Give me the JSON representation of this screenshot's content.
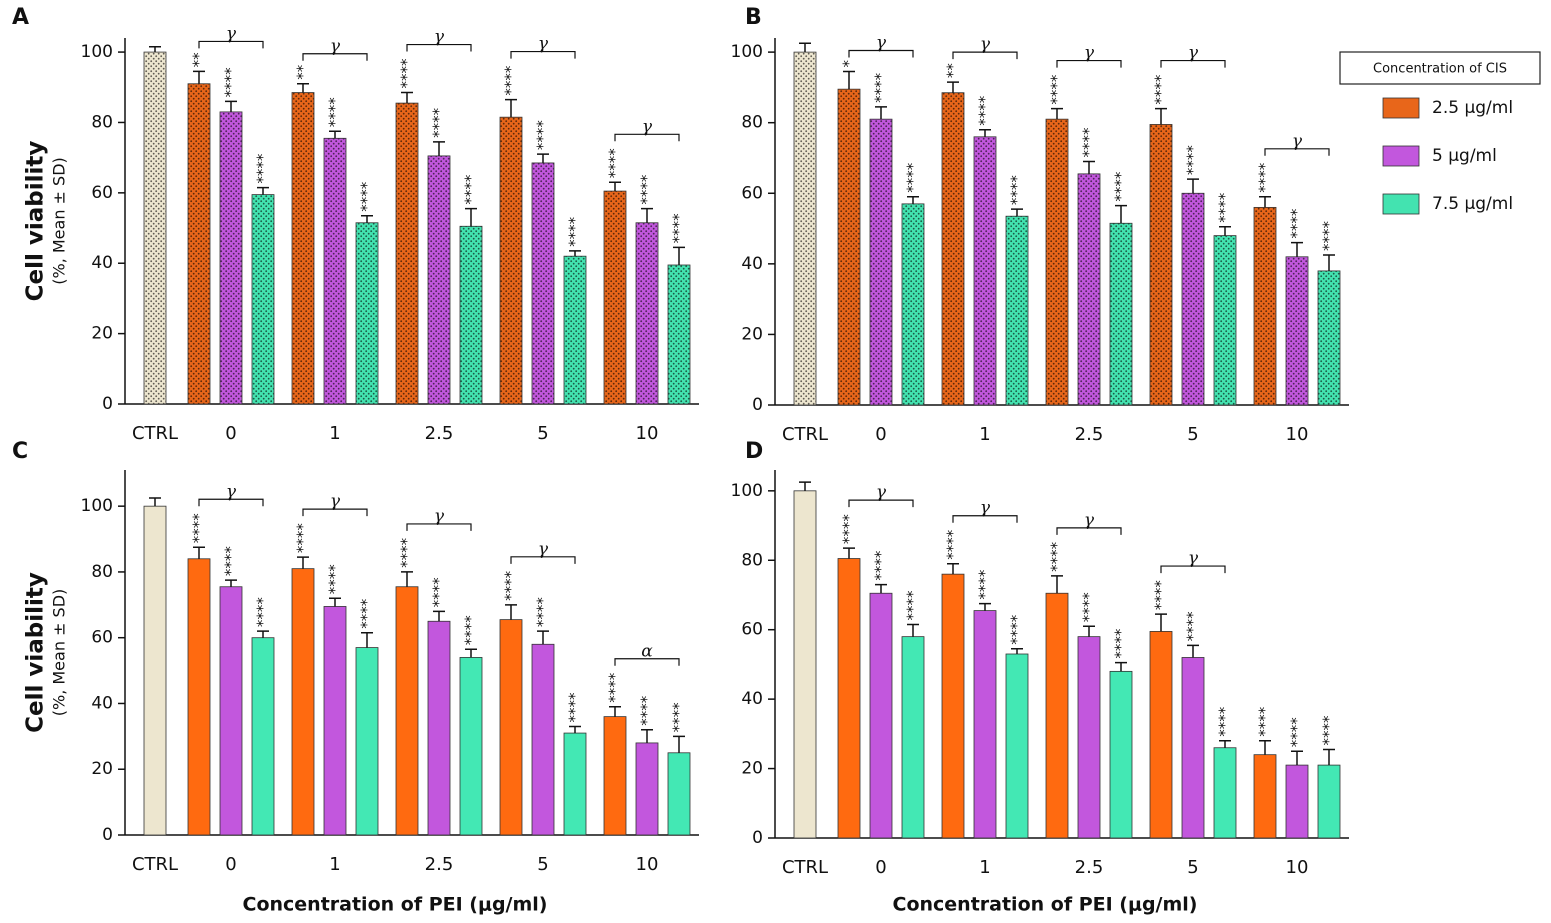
{
  "chart_data": [
    {
      "type": "bar",
      "panel": "A",
      "y_label": "Cell viability",
      "y_sublabel": "(%, Mean ± SD)",
      "pattern": "dots",
      "categories": [
        "CTRL",
        "0",
        "1",
        "2.5",
        "5",
        "10"
      ],
      "control": {
        "value": 100,
        "error": 1.5,
        "color": "#ede6cf"
      },
      "series": [
        {
          "name": "2.5 μg/ml",
          "color": "#e8661a",
          "values": [
            null,
            91,
            88.5,
            85.5,
            81.5,
            60.5
          ],
          "errors": [
            null,
            3.5,
            2.5,
            3,
            5,
            2.5
          ],
          "stars": [
            null,
            "**",
            "**",
            "****",
            "****",
            "****"
          ]
        },
        {
          "name": "5 μg/ml",
          "color": "#c257dd",
          "values": [
            null,
            83,
            75.5,
            70.5,
            68.5,
            51.5
          ],
          "errors": [
            null,
            3,
            2,
            4,
            2.5,
            4
          ],
          "stars": [
            null,
            "****",
            "****",
            "****",
            "****",
            "****"
          ]
        },
        {
          "name": "7.5 μg/ml",
          "color": "#43e3b0",
          "values": [
            null,
            59.5,
            51.5,
            50.5,
            42,
            39.5
          ],
          "errors": [
            null,
            2,
            2,
            5,
            1.5,
            5
          ],
          "stars": [
            null,
            "****",
            "****",
            "****",
            "****",
            "****"
          ]
        }
      ],
      "bracket_labels": [
        null,
        "γ",
        "γ",
        "γ",
        "γ",
        "γ"
      ],
      "ylim": [
        0,
        104
      ],
      "yticks": [
        0,
        20,
        40,
        60,
        80,
        100
      ]
    },
    {
      "type": "bar",
      "panel": "B",
      "pattern": "dots",
      "categories": [
        "CTRL",
        "0",
        "1",
        "2.5",
        "5",
        "10"
      ],
      "control": {
        "value": 100,
        "error": 2.5,
        "color": "#ede6cf"
      },
      "series": [
        {
          "name": "2.5 μg/ml",
          "color": "#e8661a",
          "values": [
            null,
            89.5,
            88.5,
            81,
            79.5,
            56
          ],
          "errors": [
            null,
            5,
            3,
            3,
            4.5,
            3
          ],
          "stars": [
            null,
            "*",
            "**",
            "****",
            "****",
            "****"
          ]
        },
        {
          "name": "5 μg/ml",
          "color": "#c257dd",
          "values": [
            null,
            81,
            76,
            65.5,
            60,
            42
          ],
          "errors": [
            null,
            3.5,
            2,
            3.5,
            4,
            4
          ],
          "stars": [
            null,
            "****",
            "****",
            "****",
            "****",
            "****"
          ]
        },
        {
          "name": "7.5 μg/ml",
          "color": "#43e3b0",
          "values": [
            null,
            57,
            53.5,
            51.5,
            48,
            38
          ],
          "errors": [
            null,
            2,
            2,
            5,
            2.5,
            4.5
          ],
          "stars": [
            null,
            "****",
            "****",
            "****",
            "****",
            "****"
          ]
        }
      ],
      "bracket_labels": [
        null,
        "γ",
        "γ",
        "γ",
        "γ",
        "γ"
      ],
      "ylim": [
        0,
        104
      ],
      "yticks": [
        0,
        20,
        40,
        60,
        80,
        100
      ]
    },
    {
      "type": "bar",
      "panel": "C",
      "y_label": "Cell viability",
      "y_sublabel": "(%, Mean ± SD)",
      "x_label": "Concentration of PEI (μg/ml)",
      "categories": [
        "CTRL",
        "0",
        "1",
        "2.5",
        "5",
        "10"
      ],
      "control": {
        "value": 100,
        "error": 2.5,
        "color": "#ede6cf"
      },
      "series": [
        {
          "name": "2.5 μg/ml",
          "color": "#ff6a10",
          "values": [
            null,
            84,
            81,
            75.5,
            65.5,
            36
          ],
          "errors": [
            null,
            3.5,
            3.5,
            4.5,
            4.5,
            3
          ],
          "stars": [
            null,
            "****",
            "****",
            "****",
            "****",
            "****"
          ]
        },
        {
          "name": "5 μg/ml",
          "color": "#c257dd",
          "values": [
            null,
            75.5,
            69.5,
            65,
            58,
            28
          ],
          "errors": [
            null,
            2,
            2.5,
            3,
            4,
            4
          ],
          "stars": [
            null,
            "****",
            "****",
            "****",
            "****",
            "****"
          ]
        },
        {
          "name": "7.5 μg/ml",
          "color": "#43e8b4",
          "values": [
            null,
            60,
            57,
            54,
            31,
            25
          ],
          "errors": [
            null,
            2,
            4.5,
            2.5,
            2,
            5
          ],
          "stars": [
            null,
            "****",
            "****",
            "****",
            "****",
            "****"
          ]
        }
      ],
      "bracket_labels": [
        null,
        "γ",
        "γ",
        "γ",
        "γ",
        "α"
      ],
      "ylim": [
        0,
        111
      ],
      "yticks": [
        0,
        20,
        40,
        60,
        80,
        100
      ]
    },
    {
      "type": "bar",
      "panel": "D",
      "x_label": "Concentration of PEI (μg/ml)",
      "categories": [
        "CTRL",
        "0",
        "1",
        "2.5",
        "5",
        "10"
      ],
      "control": {
        "value": 100,
        "error": 2.5,
        "color": "#ede6cf"
      },
      "series": [
        {
          "name": "2.5 μg/ml",
          "color": "#ff6a10",
          "values": [
            null,
            80.5,
            76,
            70.5,
            59.5,
            24
          ],
          "errors": [
            null,
            3,
            3,
            5,
            5,
            4
          ],
          "stars": [
            null,
            "****",
            "****",
            "****",
            "****",
            "****"
          ]
        },
        {
          "name": "5 μg/ml",
          "color": "#c257dd",
          "values": [
            null,
            70.5,
            65.5,
            58,
            52,
            21
          ],
          "errors": [
            null,
            2.5,
            2,
            3,
            3.5,
            4
          ],
          "stars": [
            null,
            "****",
            "****",
            "****",
            "****",
            "****"
          ]
        },
        {
          "name": "7.5 μg/ml",
          "color": "#43e8b4",
          "values": [
            null,
            58,
            53,
            48,
            26,
            21
          ],
          "errors": [
            null,
            3.5,
            1.5,
            2.5,
            2,
            4.5
          ],
          "stars": [
            null,
            "****",
            "****",
            "****",
            "****",
            "****"
          ]
        }
      ],
      "bracket_labels": [
        null,
        "γ",
        "γ",
        "γ",
        "γ",
        null
      ],
      "ylim": [
        0,
        106
      ],
      "yticks": [
        0,
        20,
        40,
        60,
        80,
        100
      ]
    }
  ],
  "legend_title": "Concentration of CIS"
}
